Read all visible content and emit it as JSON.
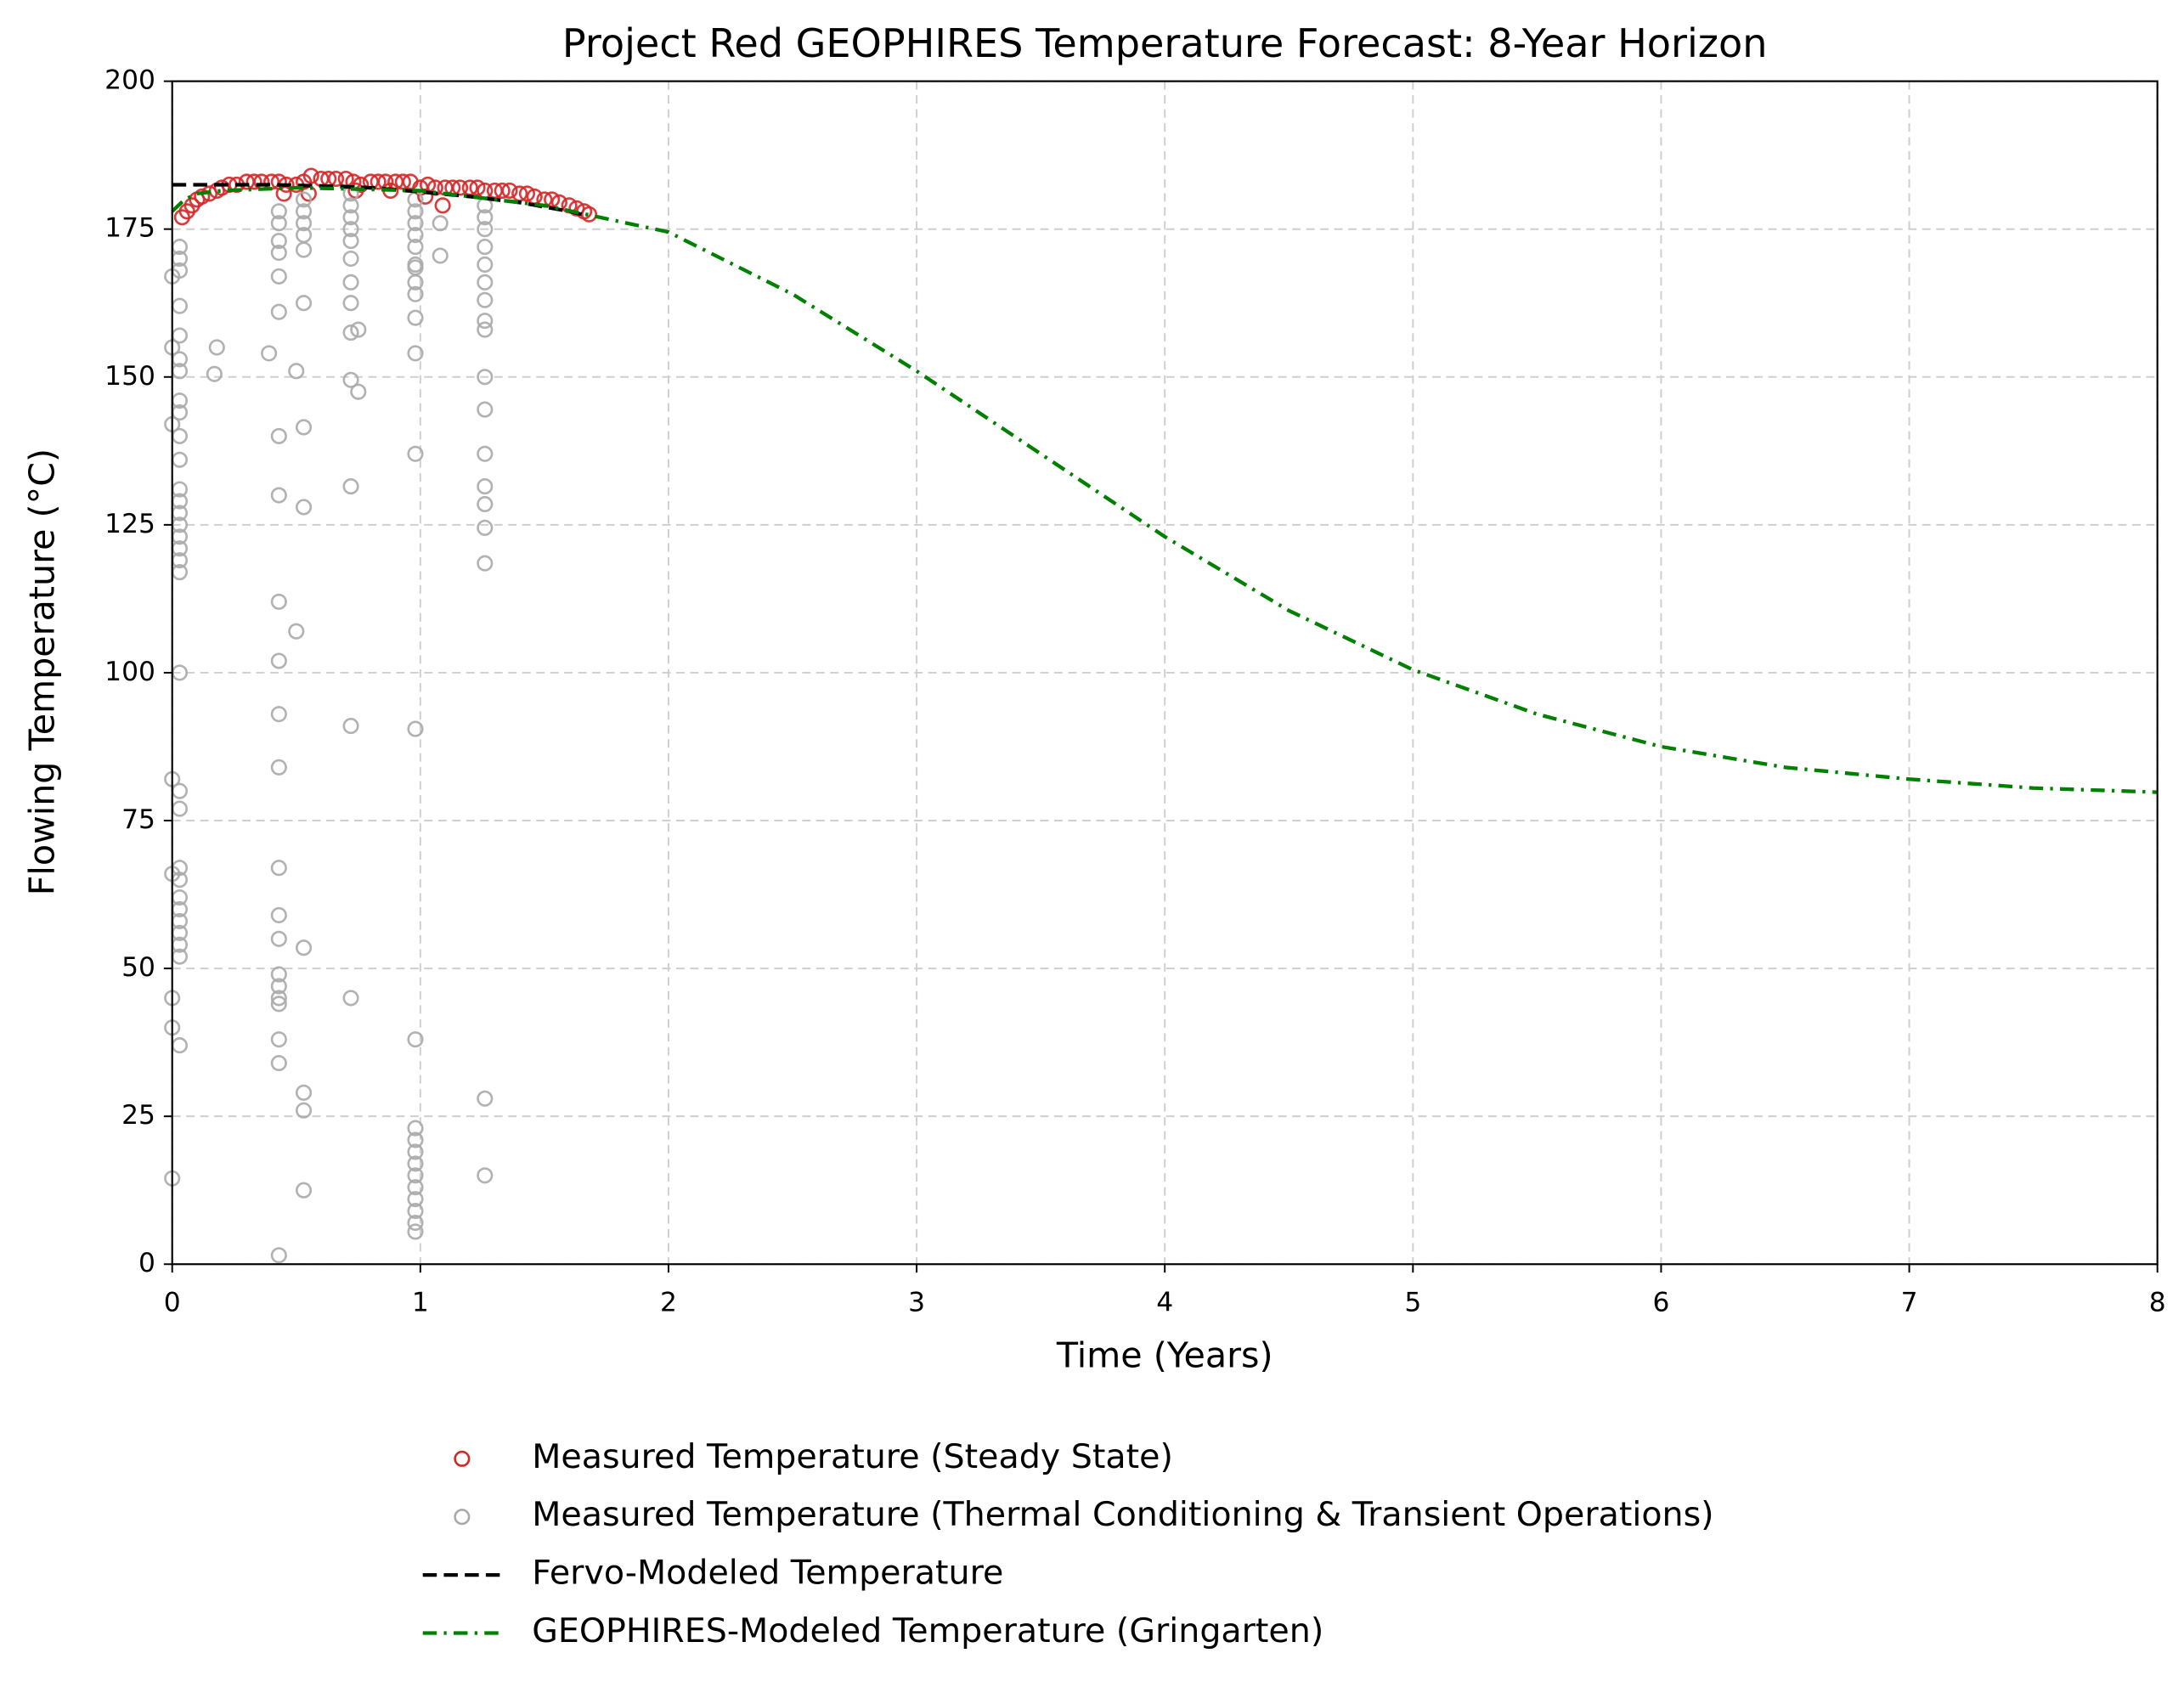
{
  "chart_data": {
    "type": "scatter",
    "title": "Project Red GEOPHIRES Temperature Forecast: 8-Year Horizon",
    "x_label": "Time (Years)",
    "y_label": "Flowing Temperature (°C)",
    "xlim": [
      0,
      8
    ],
    "ylim": [
      0,
      200
    ],
    "xticks": [
      0,
      1,
      2,
      3,
      4,
      5,
      6,
      7,
      8
    ],
    "yticks": [
      0,
      25,
      50,
      75,
      100,
      125,
      150,
      175,
      200
    ],
    "grid": true,
    "legend": "below",
    "series": [
      {
        "name": "Measured Temperature (Steady State)",
        "type": "scatter",
        "color": "#d62728",
        "x": [
          0.04,
          0.06,
          0.08,
          0.1,
          0.12,
          0.15,
          0.18,
          0.2,
          0.23,
          0.26,
          0.3,
          0.33,
          0.36,
          0.4,
          0.43,
          0.46,
          0.5,
          0.53,
          0.56,
          0.6,
          0.63,
          0.66,
          0.7,
          0.73,
          0.76,
          0.8,
          0.83,
          0.86,
          0.9,
          0.93,
          0.96,
          1.0,
          1.03,
          1.06,
          1.1,
          1.13,
          1.16,
          1.2,
          1.23,
          1.26,
          1.3,
          1.33,
          1.36,
          1.4,
          1.43,
          1.46,
          1.5,
          1.53,
          1.56,
          1.6,
          1.63,
          1.66,
          1.68,
          0.45,
          0.55,
          0.74,
          0.88,
          1.02,
          1.09
        ],
        "values": [
          177,
          178,
          179,
          180,
          180.5,
          181,
          181.5,
          182,
          182.5,
          182.5,
          183,
          183,
          183,
          183,
          183,
          182.5,
          182.5,
          183,
          184,
          183.5,
          183.5,
          183.5,
          183.5,
          183,
          182.5,
          183,
          183,
          183,
          183,
          183,
          183,
          182,
          182.5,
          182,
          182,
          182,
          182,
          182,
          182,
          181.5,
          181.5,
          181.5,
          181.5,
          181,
          181,
          180.5,
          180,
          180,
          179.5,
          179,
          178.5,
          178,
          177.5,
          181,
          181,
          181.5,
          181.5,
          180.5,
          179
        ]
      },
      {
        "name": "Measured Temperature (Thermal Conditioning & Transient Operations)",
        "type": "scatter",
        "color": "#aaaaaa",
        "x": [
          0.03,
          0.03,
          0.03,
          0.03,
          0.03,
          0.03,
          0.03,
          0.03,
          0.03,
          0.03,
          0.03,
          0.03,
          0.03,
          0.03,
          0.03,
          0.03,
          0.03,
          0.03,
          0.03,
          0.03,
          0.03,
          0.03,
          0.03,
          0.03,
          0.03,
          0.03,
          0.03,
          0.03,
          0.03,
          0.03,
          0.03,
          0,
          0,
          0,
          0,
          0,
          0,
          0,
          0,
          0.43,
          0.43,
          0.43,
          0.43,
          0.43,
          0.43,
          0.43,
          0.43,
          0.43,
          0.43,
          0.43,
          0.43,
          0.43,
          0.43,
          0.43,
          0.43,
          0.43,
          0.43,
          0.43,
          0.43,
          0.43,
          0.43,
          0.18,
          0.17,
          0.39,
          0.5,
          0.5,
          0.53,
          0.53,
          0.53,
          0.53,
          0.53,
          0.53,
          0.53,
          0.53,
          0.53,
          0.53,
          0.53,
          0.53,
          0.72,
          0.72,
          0.72,
          0.72,
          0.72,
          0.72,
          0.72,
          0.72,
          0.72,
          0.72,
          0.72,
          0.72,
          0.72,
          0.75,
          0.75,
          0.98,
          0.98,
          0.98,
          0.98,
          0.98,
          0.98,
          0.98,
          0.98,
          0.98,
          0.98,
          0.98,
          0.98,
          0.98,
          0.98,
          0.98,
          0.98,
          0.98,
          0.98,
          0.98,
          0.98,
          0.98,
          0.98,
          0.98,
          0.98,
          1.08,
          1.08,
          1.26,
          1.26,
          1.26,
          1.26,
          1.26,
          1.26,
          1.26,
          1.26,
          1.26,
          1.26,
          1.26,
          1.26,
          1.26,
          1.26,
          1.26,
          1.26,
          1.26,
          1.26
        ],
        "values": [
          172,
          170,
          168,
          162,
          157,
          153,
          151,
          146,
          144,
          140,
          136,
          131,
          129,
          127,
          125,
          123,
          121,
          119,
          117,
          100,
          80,
          77,
          67,
          65,
          62,
          60,
          58,
          56,
          54,
          52,
          37,
          167,
          155,
          142,
          82,
          66,
          45,
          40,
          14.5,
          178,
          176,
          173,
          171,
          167,
          161,
          140,
          130,
          112,
          102,
          93,
          84,
          67,
          59,
          55,
          49,
          47,
          45,
          44,
          38,
          34,
          1.5,
          155,
          150.5,
          154,
          151,
          107,
          180,
          178,
          176,
          174,
          171.5,
          162.5,
          141.5,
          128,
          53.5,
          29,
          26,
          12.5,
          181,
          179,
          177,
          175,
          173,
          170,
          166,
          162.5,
          157.5,
          149.5,
          131.5,
          91,
          45,
          158,
          147.5,
          180,
          178,
          176,
          174,
          172,
          169,
          168.5,
          166,
          164,
          160,
          154,
          137,
          90.5,
          38,
          23,
          21,
          19,
          17,
          15,
          13,
          11,
          9,
          7,
          5.5,
          176,
          170.5,
          179,
          177,
          175,
          172,
          169,
          166,
          163,
          159.5,
          158,
          150,
          144.5,
          137,
          131.5,
          128.5,
          124.5,
          118.5,
          28,
          15
        ]
      },
      {
        "name": "Fervo-Modeled Temperature",
        "type": "line",
        "dash": "dashed",
        "color": "#000000",
        "x": [
          0,
          0.2,
          0.4,
          0.6,
          0.8,
          1.0,
          1.2,
          1.4,
          1.6,
          1.65
        ],
        "values": [
          182.5,
          182.5,
          182.5,
          182.3,
          182,
          181.3,
          180.5,
          179.5,
          178,
          177.5
        ]
      },
      {
        "name": "GEOPHIRES-Modeled Temperature (Gringarten)",
        "type": "line",
        "dash": "dashdot",
        "color": "#008000",
        "x": [
          0,
          0.05,
          0.1,
          0.2,
          0.5,
          1,
          1.5,
          2,
          2.5,
          3,
          3.5,
          4,
          4.5,
          5,
          5.5,
          6,
          6.5,
          7,
          7.5,
          8
        ],
        "values": [
          178,
          180,
          181,
          181.5,
          182,
          181.5,
          179,
          174.5,
          164,
          151,
          137,
          123,
          110.5,
          100.5,
          93,
          87.5,
          84,
          82,
          80.5,
          79.8
        ]
      }
    ]
  }
}
